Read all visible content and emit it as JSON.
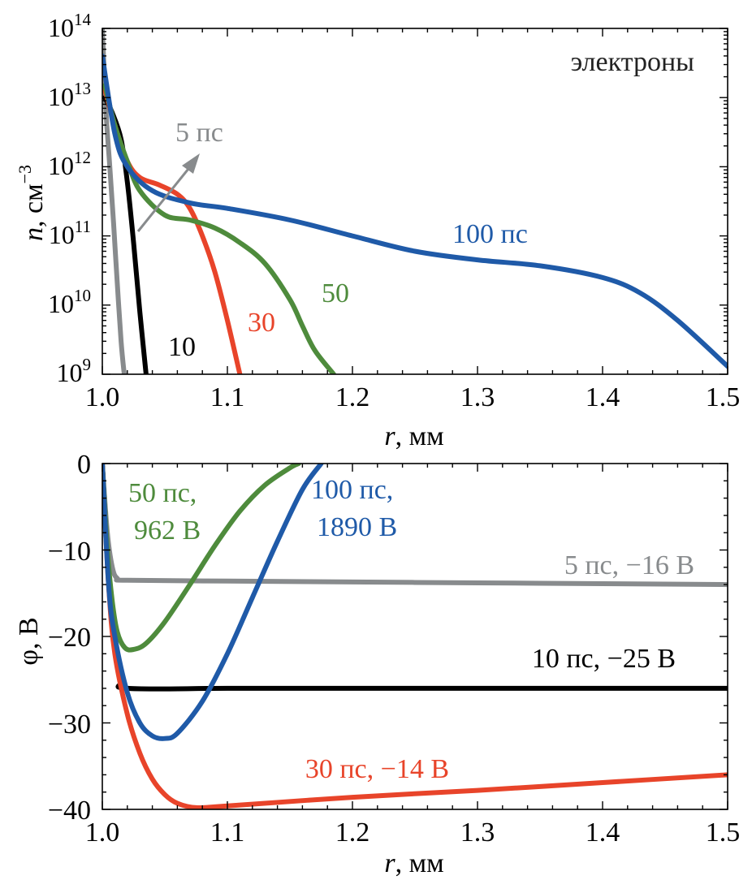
{
  "chart_data": [
    {
      "type": "line",
      "panel": "top",
      "xlabel_symbol": "r",
      "xlabel_unit": ", мм",
      "ylabel_symbol": "n",
      "ylabel_unit": ", см",
      "ylabel_exp": "−3",
      "xlim": [
        1.0,
        1.5
      ],
      "ylim": [
        1000000000.0,
        100000000000000.0
      ],
      "yscale": "log",
      "grid": false,
      "x_ticks": [
        "1.0",
        "1.1",
        "1.2",
        "1.3",
        "1.4",
        "1.5"
      ],
      "y_ticks": [
        {
          "base": "10",
          "exp": "9"
        },
        {
          "base": "10",
          "exp": "10"
        },
        {
          "base": "10",
          "exp": "11"
        },
        {
          "base": "10",
          "exp": "12"
        },
        {
          "base": "10",
          "exp": "13"
        },
        {
          "base": "10",
          "exp": "14"
        }
      ],
      "annotation": "электроны",
      "arrow_label": "5 пс",
      "series": [
        {
          "key": "5",
          "color": "#888b8d",
          "x": [
            1.0,
            1.003,
            1.006,
            1.009,
            1.012,
            1.015,
            1.0175
          ],
          "y": [
            100000000000000.0,
            6000000000000.0,
            1000000000000.0,
            150000000000.0,
            20000000000.0,
            3000000000.0,
            1000000000.0
          ]
        },
        {
          "key": "10",
          "color": "#000000",
          "x": [
            1.002,
            1.008,
            1.015,
            1.02,
            1.025,
            1.03,
            1.035
          ],
          "y": [
            10000000000000.0,
            6000000000000.0,
            2500000000000.0,
            600000000000.0,
            80000000000.0,
            8000000000.0,
            1000000000.0
          ]
        },
        {
          "key": "30",
          "color": "#e8442a",
          "x": [
            1.002,
            1.01,
            1.02,
            1.03,
            1.045,
            1.06,
            1.07,
            1.08,
            1.09,
            1.1,
            1.11
          ],
          "y": [
            13000000000000.0,
            4000000000000.0,
            1200000000000.0,
            700000000000.0,
            550000000000.0,
            400000000000.0,
            250000000000.0,
            100000000000.0,
            30000000000.0,
            6000000000.0,
            1000000000.0
          ]
        },
        {
          "key": "50",
          "color": "#4e8b3c",
          "x": [
            1.002,
            1.01,
            1.02,
            1.03,
            1.05,
            1.07,
            1.09,
            1.11,
            1.13,
            1.15,
            1.16,
            1.17,
            1.185
          ],
          "y": [
            15000000000000.0,
            4000000000000.0,
            1200000000000.0,
            450000000000.0,
            200000000000.0,
            170000000000.0,
            130000000000.0,
            80000000000.0,
            40000000000.0,
            12000000000.0,
            5000000000.0,
            2200000000.0,
            1000000000.0
          ]
        },
        {
          "key": "100",
          "color": "#1f5aa8",
          "x": [
            1.0,
            1.01,
            1.02,
            1.04,
            1.07,
            1.1,
            1.15,
            1.2,
            1.25,
            1.3,
            1.35,
            1.4,
            1.43,
            1.46,
            1.5
          ],
          "y": [
            40000000000000.0,
            3000000000000.0,
            1000000000000.0,
            450000000000.0,
            300000000000.0,
            250000000000.0,
            170000000000.0,
            100000000000.0,
            60000000000.0,
            45000000000.0,
            37000000000.0,
            25000000000.0,
            15000000000.0,
            6000000000.0,
            1300000000.0
          ]
        }
      ],
      "labels": [
        {
          "key": "10",
          "text": "10"
        },
        {
          "key": "30",
          "text": "30"
        },
        {
          "key": "50",
          "text": "50"
        },
        {
          "key": "100",
          "text": "100 пс"
        }
      ]
    },
    {
      "type": "line",
      "panel": "bottom",
      "xlabel_symbol": "r",
      "xlabel_unit": ", мм",
      "ylabel": "φ, В",
      "xlim": [
        1.0,
        1.5
      ],
      "ylim": [
        -40,
        0
      ],
      "grid": false,
      "x_ticks": [
        "1.0",
        "1.1",
        "1.2",
        "1.3",
        "1.4",
        "1.5"
      ],
      "y_ticks": [
        "−40",
        "−30",
        "−20",
        "−10",
        "0"
      ],
      "series": [
        {
          "key": "5",
          "color": "#888b8d",
          "x": [
            1.0,
            1.004,
            1.008,
            1.012,
            1.02,
            1.1,
            1.2,
            1.3,
            1.4,
            1.5
          ],
          "y": [
            0,
            -8,
            -12,
            -13.3,
            -13.5,
            -13.6,
            -13.7,
            -13.8,
            -13.9,
            -14
          ]
        },
        {
          "key": "10",
          "color": "#000000",
          "x": [
            1.0,
            1.005,
            1.01,
            1.015,
            1.02,
            1.1,
            1.2,
            1.3,
            1.4,
            1.5
          ],
          "y": [
            0,
            -13,
            -21,
            -25,
            -26,
            -26,
            -26,
            -26,
            -26,
            -26
          ]
        },
        {
          "key": "30",
          "color": "#e8442a",
          "x": [
            1.0,
            1.005,
            1.01,
            1.02,
            1.03,
            1.04,
            1.05,
            1.06,
            1.075,
            1.1,
            1.2,
            1.3,
            1.4,
            1.5
          ],
          "y": [
            0,
            -14,
            -22,
            -29,
            -33.5,
            -36.5,
            -38.3,
            -39.3,
            -39.8,
            -39.6,
            -38.6,
            -37.8,
            -36.9,
            -36
          ]
        },
        {
          "key": "50",
          "color": "#4e8b3c",
          "x": [
            1.0,
            1.004,
            1.008,
            1.012,
            1.018,
            1.025,
            1.035,
            1.05,
            1.07,
            1.09,
            1.11,
            1.13,
            1.15,
            1.157
          ],
          "y": [
            0,
            -10,
            -16,
            -19.5,
            -21.3,
            -21.5,
            -20.8,
            -18.3,
            -14,
            -9.5,
            -5.5,
            -2.5,
            -0.5,
            0
          ]
        },
        {
          "key": "100",
          "color": "#1f5aa8",
          "x": [
            1.0,
            1.005,
            1.01,
            1.02,
            1.03,
            1.04,
            1.05,
            1.06,
            1.08,
            1.1,
            1.12,
            1.14,
            1.16,
            1.175
          ],
          "y": [
            0,
            -14,
            -20,
            -26.5,
            -30,
            -31.5,
            -31.8,
            -31.2,
            -27.5,
            -22,
            -15.5,
            -9,
            -3,
            0
          ]
        }
      ],
      "labels": [
        {
          "key": "50",
          "lines": [
            "50 пс,",
            "962 В"
          ]
        },
        {
          "key": "100",
          "lines": [
            "100 пс,",
            "1890 В"
          ]
        },
        {
          "key": "5",
          "lines": [
            "5 пс, −16 В"
          ]
        },
        {
          "key": "10",
          "lines": [
            "10 пс, −25 В"
          ]
        },
        {
          "key": "30",
          "lines": [
            "30 пс, −14 В"
          ]
        }
      ]
    }
  ]
}
